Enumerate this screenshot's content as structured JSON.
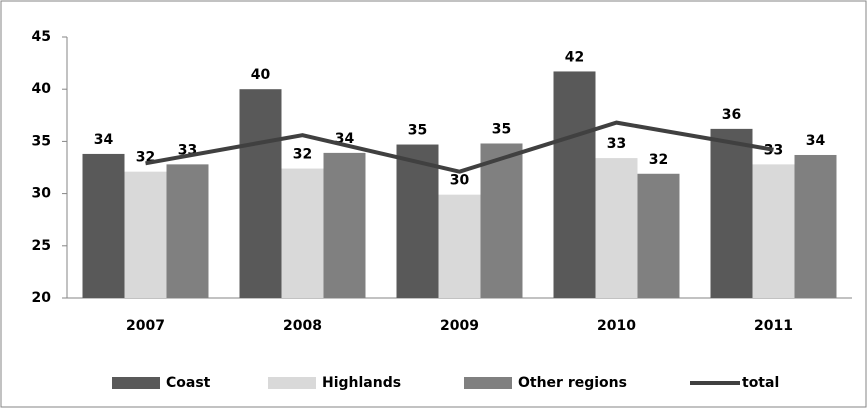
{
  "chart_data": {
    "type": "bar",
    "categories": [
      "2007",
      "2008",
      "2009",
      "2010",
      "2011"
    ],
    "series": [
      {
        "name": "Coast",
        "color": "#595959",
        "values": [
          33.8,
          40.0,
          34.7,
          41.7,
          36.2
        ],
        "value_labels": [
          "34",
          "40",
          "35",
          "42",
          "36"
        ]
      },
      {
        "name": "Highlands",
        "color": "#d9d9d9",
        "values": [
          32.1,
          32.4,
          29.9,
          33.4,
          32.8
        ],
        "value_labels": [
          "32",
          "32",
          "30",
          "33",
          "33"
        ]
      },
      {
        "name": "Other regions",
        "color": "#808080",
        "values": [
          32.8,
          33.9,
          34.8,
          31.9,
          33.7
        ],
        "value_labels": [
          "33",
          "34",
          "35",
          "32",
          "34"
        ]
      },
      {
        "name": "total",
        "type": "line",
        "color": "#404040",
        "values": [
          32.9,
          35.6,
          32.1,
          36.8,
          34.2
        ]
      }
    ],
    "ylim": [
      20,
      45
    ],
    "yticks": [
      20,
      25,
      30,
      35,
      40,
      45
    ],
    "legend": "bottom"
  }
}
